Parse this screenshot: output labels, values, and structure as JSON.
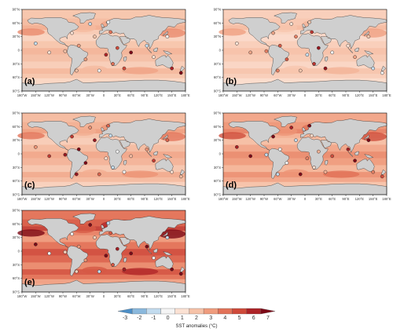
{
  "panels": [
    {
      "label": "(a)",
      "intensity": 1.0
    },
    {
      "label": "(b)",
      "intensity": 0.85
    },
    {
      "label": "(c)",
      "intensity": 1.15
    },
    {
      "label": "(d)",
      "intensity": 1.45
    },
    {
      "label": "(e)",
      "intensity": 2.1
    }
  ],
  "lat_labels": [
    "90°N",
    "60°N",
    "30°N",
    "0",
    "30°S",
    "60°S",
    "90°S"
  ],
  "lon_labels": [
    "180°W",
    "150°W",
    "120°W",
    "90°W",
    "60°W",
    "30°W",
    "0",
    "30°E",
    "60°E",
    "90°E",
    "120°E",
    "150°E",
    "180°E"
  ],
  "colorbar": {
    "title": "SST anomalies (°C)",
    "ticks": [
      "-3",
      "-2",
      "-1",
      "0",
      "1",
      "2",
      "3",
      "4",
      "5",
      "6",
      "7"
    ],
    "colors": [
      "#4d8fc7",
      "#8ab8dc",
      "#c2dbee",
      "#f4f4f4",
      "#fbe1d3",
      "#f6c2a8",
      "#ef9c7d",
      "#e27258",
      "#cf4a3a",
      "#ad2327",
      "#7d0a17"
    ]
  }
}
